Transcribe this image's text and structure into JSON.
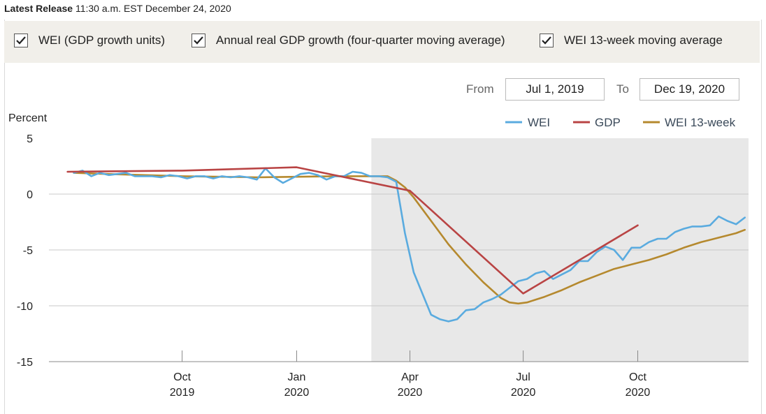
{
  "release": {
    "label": "Latest Release",
    "time": "11:30 a.m. EST December 24, 2020"
  },
  "toggles": [
    {
      "label": "WEI (GDP growth units)",
      "checked": true
    },
    {
      "label": "Annual real GDP growth (four-quarter moving average)",
      "checked": true
    },
    {
      "label": "WEI 13-week moving average",
      "checked": true
    }
  ],
  "range": {
    "from_label": "From",
    "from_value": "Jul 1, 2019",
    "to_label": "To",
    "to_value": "Dec 19, 2020"
  },
  "colors": {
    "wei": "#5aabdf",
    "gdp": "#b94444",
    "wei13": "#b5892e",
    "shade": "#e8e8e8",
    "grid": "#c8c8c8"
  },
  "chart_data": {
    "type": "line",
    "title": "",
    "ylabel": "Percent",
    "xlabel": "",
    "ylim": [
      -15,
      5
    ],
    "yticks": [
      5,
      0,
      -5,
      -10,
      -15
    ],
    "xlim": [
      "2019-07-01",
      "2020-12-19"
    ],
    "xticks": [
      {
        "date": "2019-10-01",
        "month": "Oct",
        "year": "2019"
      },
      {
        "date": "2020-01-01",
        "month": "Jan",
        "year": "2020"
      },
      {
        "date": "2020-04-01",
        "month": "Apr",
        "year": "2020"
      },
      {
        "date": "2020-07-01",
        "month": "Jul",
        "year": "2020"
      },
      {
        "date": "2020-10-01",
        "month": "Oct",
        "year": "2020"
      }
    ],
    "shaded_range": [
      "2020-03-01",
      "2020-12-19"
    ],
    "legend": [
      "WEI",
      "GDP",
      "WEI 13-week"
    ],
    "series": [
      {
        "name": "WEI",
        "key": "wei",
        "points": [
          [
            "2019-07-06",
            1.9
          ],
          [
            "2019-07-13",
            2.1
          ],
          [
            "2019-07-20",
            1.6
          ],
          [
            "2019-07-27",
            1.9
          ],
          [
            "2019-08-03",
            1.7
          ],
          [
            "2019-08-10",
            1.8
          ],
          [
            "2019-08-17",
            1.9
          ],
          [
            "2019-08-24",
            1.6
          ],
          [
            "2019-08-31",
            1.6
          ],
          [
            "2019-09-07",
            1.6
          ],
          [
            "2019-09-14",
            1.5
          ],
          [
            "2019-09-21",
            1.7
          ],
          [
            "2019-09-28",
            1.6
          ],
          [
            "2019-10-05",
            1.4
          ],
          [
            "2019-10-12",
            1.6
          ],
          [
            "2019-10-19",
            1.6
          ],
          [
            "2019-10-26",
            1.4
          ],
          [
            "2019-11-02",
            1.6
          ],
          [
            "2019-11-09",
            1.5
          ],
          [
            "2019-11-16",
            1.6
          ],
          [
            "2019-11-23",
            1.5
          ],
          [
            "2019-11-30",
            1.3
          ],
          [
            "2019-12-07",
            2.3
          ],
          [
            "2019-12-14",
            1.5
          ],
          [
            "2019-12-21",
            1.0
          ],
          [
            "2019-12-28",
            1.4
          ],
          [
            "2020-01-04",
            1.8
          ],
          [
            "2020-01-11",
            1.9
          ],
          [
            "2020-01-18",
            1.7
          ],
          [
            "2020-01-25",
            1.3
          ],
          [
            "2020-02-01",
            1.6
          ],
          [
            "2020-02-08",
            1.6
          ],
          [
            "2020-02-15",
            2.0
          ],
          [
            "2020-02-22",
            1.9
          ],
          [
            "2020-02-29",
            1.6
          ],
          [
            "2020-03-07",
            1.6
          ],
          [
            "2020-03-14",
            1.5
          ],
          [
            "2020-03-21",
            1.1
          ],
          [
            "2020-03-28",
            -3.5
          ],
          [
            "2020-04-04",
            -7.0
          ],
          [
            "2020-04-11",
            -8.9
          ],
          [
            "2020-04-18",
            -10.8
          ],
          [
            "2020-04-25",
            -11.2
          ],
          [
            "2020-05-02",
            -11.4
          ],
          [
            "2020-05-09",
            -11.2
          ],
          [
            "2020-05-16",
            -10.4
          ],
          [
            "2020-05-23",
            -10.3
          ],
          [
            "2020-05-30",
            -9.7
          ],
          [
            "2020-06-06",
            -9.4
          ],
          [
            "2020-06-13",
            -9.0
          ],
          [
            "2020-06-20",
            -8.4
          ],
          [
            "2020-06-27",
            -7.8
          ],
          [
            "2020-07-04",
            -7.6
          ],
          [
            "2020-07-11",
            -7.1
          ],
          [
            "2020-07-18",
            -6.9
          ],
          [
            "2020-07-25",
            -7.6
          ],
          [
            "2020-08-01",
            -7.2
          ],
          [
            "2020-08-08",
            -6.8
          ],
          [
            "2020-08-15",
            -6.0
          ],
          [
            "2020-08-22",
            -6.0
          ],
          [
            "2020-08-29",
            -5.2
          ],
          [
            "2020-09-05",
            -4.7
          ],
          [
            "2020-09-12",
            -5.0
          ],
          [
            "2020-09-19",
            -5.9
          ],
          [
            "2020-09-26",
            -4.8
          ],
          [
            "2020-10-03",
            -4.8
          ],
          [
            "2020-10-10",
            -4.3
          ],
          [
            "2020-10-17",
            -4.0
          ],
          [
            "2020-10-24",
            -4.0
          ],
          [
            "2020-10-31",
            -3.4
          ],
          [
            "2020-11-07",
            -3.1
          ],
          [
            "2020-11-14",
            -2.9
          ],
          [
            "2020-11-21",
            -2.9
          ],
          [
            "2020-11-28",
            -2.8
          ],
          [
            "2020-12-05",
            -2.0
          ],
          [
            "2020-12-12",
            -2.4
          ],
          [
            "2020-12-19",
            -2.7
          ],
          [
            "2020-12-26",
            -2.1
          ]
        ]
      },
      {
        "name": "GDP",
        "key": "gdp",
        "points": [
          [
            "2019-07-01",
            2.0
          ],
          [
            "2019-10-01",
            2.1
          ],
          [
            "2020-01-01",
            2.4
          ],
          [
            "2020-04-01",
            0.3
          ],
          [
            "2020-07-01",
            -8.9
          ],
          [
            "2020-10-01",
            -2.8
          ]
        ]
      },
      {
        "name": "WEI 13-week",
        "key": "wei13",
        "points": [
          [
            "2019-07-06",
            1.9
          ],
          [
            "2019-08-01",
            1.8
          ],
          [
            "2019-09-01",
            1.7
          ],
          [
            "2019-10-01",
            1.6
          ],
          [
            "2019-11-01",
            1.55
          ],
          [
            "2019-12-01",
            1.5
          ],
          [
            "2020-01-01",
            1.55
          ],
          [
            "2020-02-01",
            1.6
          ],
          [
            "2020-03-01",
            1.6
          ],
          [
            "2020-03-14",
            1.6
          ],
          [
            "2020-03-21",
            1.2
          ],
          [
            "2020-03-28",
            0.6
          ],
          [
            "2020-04-04",
            -0.3
          ],
          [
            "2020-04-18",
            -2.4
          ],
          [
            "2020-05-02",
            -4.5
          ],
          [
            "2020-05-16",
            -6.3
          ],
          [
            "2020-05-30",
            -7.9
          ],
          [
            "2020-06-13",
            -9.3
          ],
          [
            "2020-06-20",
            -9.7
          ],
          [
            "2020-06-27",
            -9.8
          ],
          [
            "2020-07-04",
            -9.7
          ],
          [
            "2020-07-18",
            -9.2
          ],
          [
            "2020-08-01",
            -8.6
          ],
          [
            "2020-08-15",
            -7.9
          ],
          [
            "2020-08-29",
            -7.3
          ],
          [
            "2020-09-12",
            -6.7
          ],
          [
            "2020-09-26",
            -6.3
          ],
          [
            "2020-10-10",
            -5.9
          ],
          [
            "2020-10-24",
            -5.4
          ],
          [
            "2020-11-07",
            -4.8
          ],
          [
            "2020-11-21",
            -4.3
          ],
          [
            "2020-12-05",
            -3.9
          ],
          [
            "2020-12-19",
            -3.5
          ],
          [
            "2020-12-26",
            -3.2
          ]
        ]
      }
    ]
  }
}
